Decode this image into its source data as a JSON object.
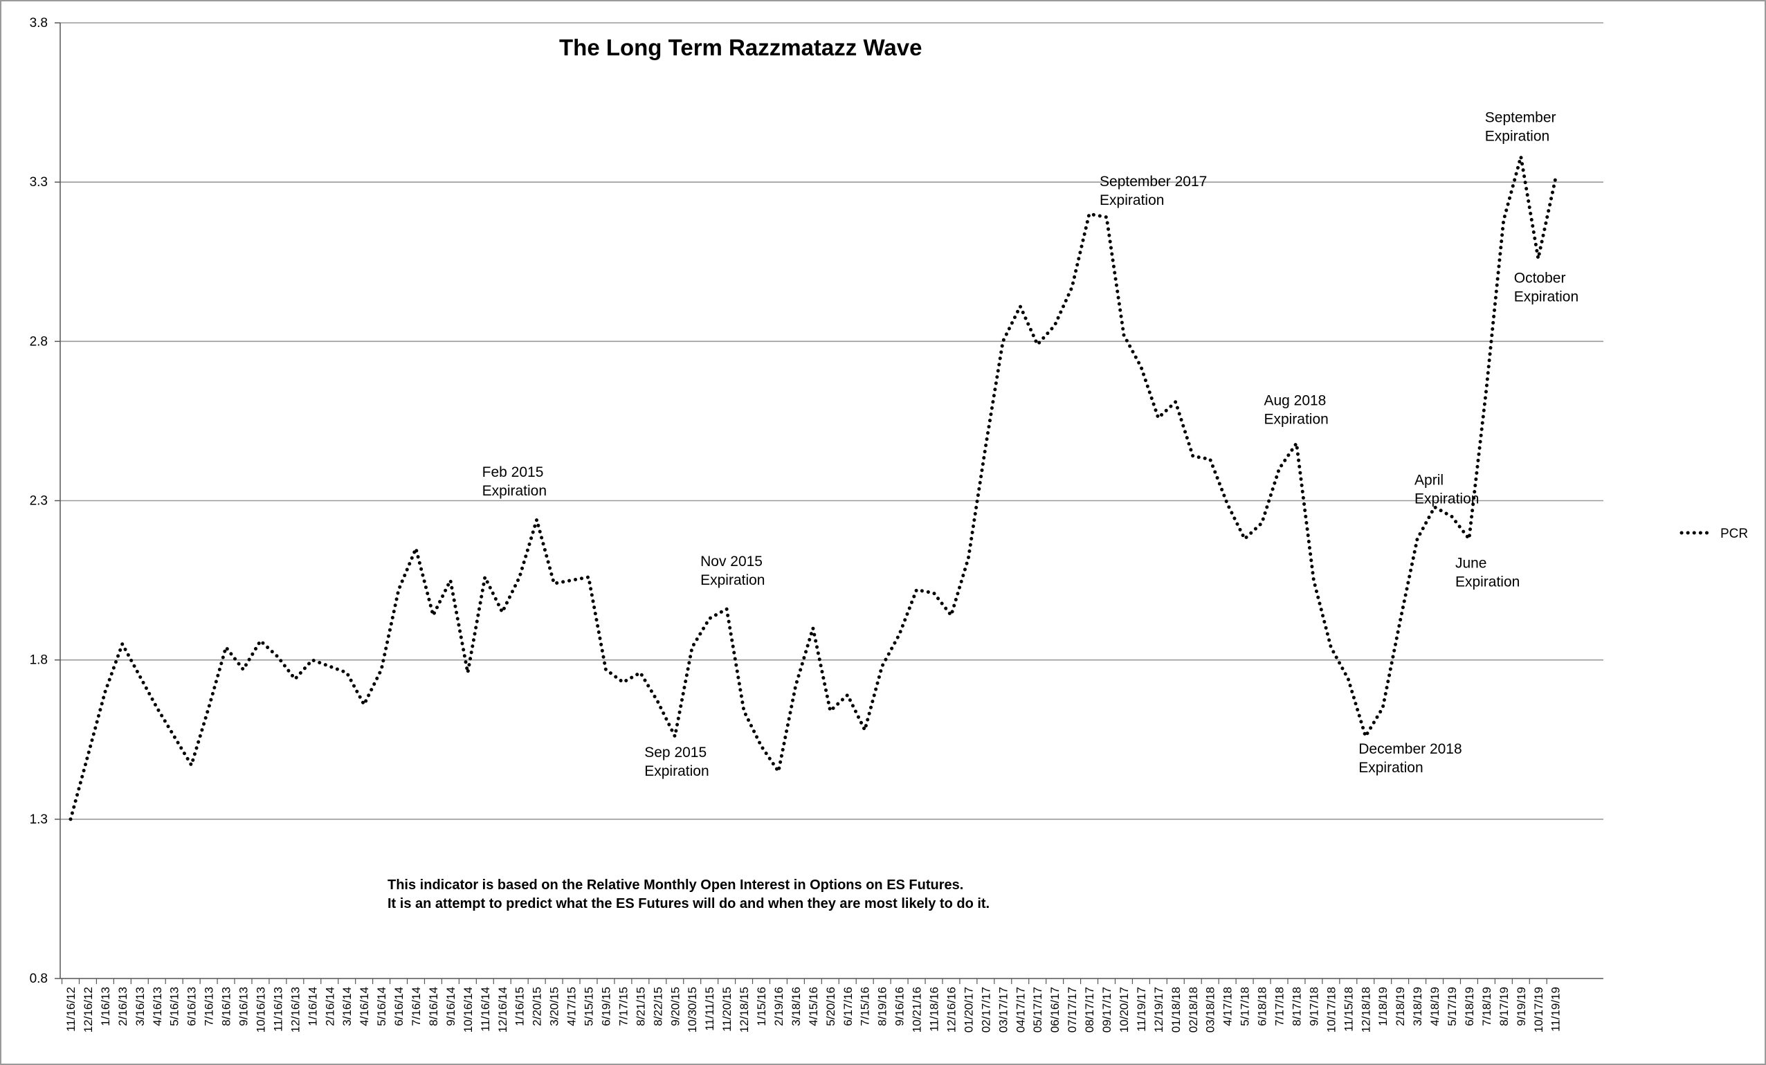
{
  "chart_data": {
    "type": "line",
    "title": "The Long Term Razzmatazz Wave",
    "xlabel": "",
    "ylabel": "",
    "ylim": [
      0.8,
      3.8
    ],
    "yticks": [
      "0.8",
      "1.3",
      "1.8",
      "2.3",
      "2.8",
      "3.3",
      "3.8"
    ],
    "grid": true,
    "legend_position": "right",
    "categories": [
      "11/16/12",
      "12/16/12",
      "1/16/13",
      "2/16/13",
      "3/16/13",
      "4/16/13",
      "5/16/13",
      "6/16/13",
      "7/16/13",
      "8/16/13",
      "9/16/13",
      "10/16/13",
      "11/16/13",
      "12/16/13",
      "1/16/14",
      "2/16/14",
      "3/16/14",
      "4/16/14",
      "5/16/14",
      "6/16/14",
      "7/16/14",
      "8/16/14",
      "9/16/14",
      "10/16/14",
      "11/16/14",
      "12/16/14",
      "1/16/15",
      "2/20/15",
      "3/20/15",
      "4/17/15",
      "5/15/15",
      "6/19/15",
      "7/17/15",
      "8/21/15",
      "8/22/15",
      "9/20/15",
      "10/30/15",
      "11/11/15",
      "11/20/15",
      "12/18/15",
      "1/15/16",
      "2/19/16",
      "3/18/16",
      "4/15/16",
      "5/20/16",
      "6/17/16",
      "7/15/16",
      "8/19/16",
      "9/16/16",
      "10/21/16",
      "11/18/16",
      "12/16/16",
      "01/20/17",
      "02/17/17",
      "03/17/17",
      "04/17/17",
      "05/17/17",
      "06/16/17",
      "07/17/17",
      "08/17/17",
      "09/17/17",
      "10/20/17",
      "11/19/17",
      "12/19/17",
      "01/18/18",
      "02/18/18",
      "03/18/18",
      "4/17/18",
      "5/17/18",
      "6/18/18",
      "7/17/18",
      "8/17/18",
      "9/17/18",
      "10/17/18",
      "11/15/18",
      "12/18/18",
      "1/18/19",
      "2/18/19",
      "3/18/19",
      "4/18/19",
      "5/17/19",
      "6/18/19",
      "7/18/19",
      "8/17/19",
      "9/19/19",
      "10/17/19",
      "11/19/19"
    ],
    "series": [
      {
        "name": "PCR",
        "color": "#000000",
        "values": [
          1.3,
          1.5,
          1.7,
          1.85,
          1.75,
          1.65,
          1.56,
          1.47,
          1.65,
          1.84,
          1.77,
          1.86,
          1.81,
          1.74,
          1.8,
          1.78,
          1.76,
          1.66,
          1.77,
          2.02,
          2.15,
          1.94,
          2.05,
          1.76,
          2.06,
          1.95,
          2.06,
          2.24,
          2.04,
          2.05,
          2.06,
          1.77,
          1.73,
          1.76,
          1.67,
          1.56,
          1.84,
          1.93,
          1.96,
          1.64,
          1.53,
          1.45,
          1.72,
          1.9,
          1.64,
          1.69,
          1.58,
          1.78,
          1.88,
          2.02,
          2.01,
          1.94,
          2.12,
          2.47,
          2.8,
          2.91,
          2.79,
          2.85,
          2.97,
          3.2,
          3.19,
          2.82,
          2.72,
          2.56,
          2.61,
          2.44,
          2.43,
          2.29,
          2.18,
          2.23,
          2.4,
          2.48,
          2.05,
          1.84,
          1.74,
          1.56,
          1.65,
          1.92,
          2.18,
          2.28,
          2.25,
          2.18,
          2.65,
          3.18,
          3.38,
          3.06,
          3.31
        ]
      }
    ],
    "annotations": [
      {
        "line1": "Feb 2015",
        "line2": "Expiration"
      },
      {
        "line1": "Sep 2015",
        "line2": "Expiration"
      },
      {
        "line1": "Nov 2015",
        "line2": "Expiration"
      },
      {
        "line1": "September 2017",
        "line2": "Expiration"
      },
      {
        "line1": "Aug 2018",
        "line2": "Expiration"
      },
      {
        "line1": "December 2018",
        "line2": "Expiration"
      },
      {
        "line1": "April",
        "line2": "Expiration"
      },
      {
        "line1": "June",
        "line2": "Expiration"
      },
      {
        "line1": "September",
        "line2": "Expiration"
      },
      {
        "line1": "October",
        "line2": "Expiration"
      }
    ],
    "note": {
      "line1": "This indicator is based on the Relative Monthly Open Interest in Options on ES Futures.",
      "line2": "It is an attempt to predict what the ES Futures will do and when they are most likely to do it."
    }
  }
}
